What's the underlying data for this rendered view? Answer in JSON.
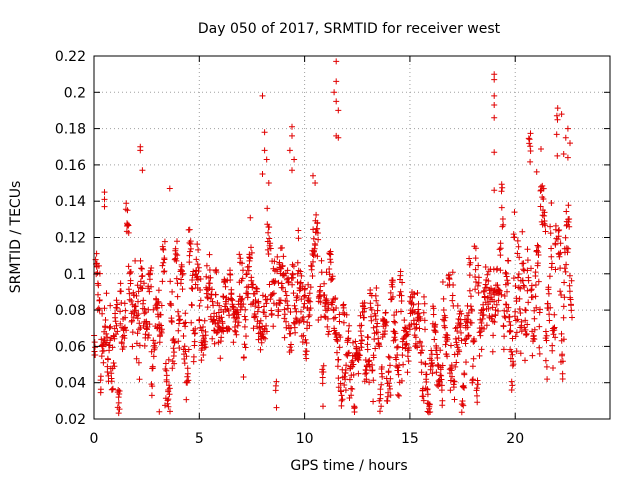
{
  "chart_data": {
    "type": "scatter",
    "title": "Day 050 of 2017, SRMTID for receiver west",
    "xlabel": "GPS time / hours",
    "ylabel": "SRMTID / TECUs",
    "xlim": [
      0,
      24.5
    ],
    "ylim": [
      0.02,
      0.22
    ],
    "xticks": [
      0,
      5,
      10,
      15,
      20
    ],
    "xtick_labels": [
      "0",
      "5",
      "10",
      "15",
      "20"
    ],
    "yticks": [
      0.02,
      0.04,
      0.06,
      0.08,
      0.1,
      0.12,
      0.14,
      0.16,
      0.18,
      0.2,
      0.22
    ],
    "ytick_labels": [
      "0.02",
      "0.04",
      "0.06",
      "0.08",
      "0.1",
      "0.12",
      "0.14",
      "0.16",
      "0.18",
      "0.2",
      "0.22"
    ],
    "grid": true,
    "marker": "+",
    "series": [
      {
        "name": "SRMTID",
        "color": "#e00000",
        "x_range": [
          0,
          22.7
        ],
        "point_count": 1800,
        "trend": [
          {
            "hour": 0,
            "mean": 0.072,
            "spread": 0.018
          },
          {
            "hour": 2,
            "mean": 0.07,
            "spread": 0.025
          },
          {
            "hour": 4,
            "mean": 0.078,
            "spread": 0.022
          },
          {
            "hour": 6,
            "mean": 0.075,
            "spread": 0.02
          },
          {
            "hour": 8,
            "mean": 0.085,
            "spread": 0.025
          },
          {
            "hour": 10,
            "mean": 0.088,
            "spread": 0.025
          },
          {
            "hour": 12,
            "mean": 0.058,
            "spread": 0.015
          },
          {
            "hour": 14,
            "mean": 0.06,
            "spread": 0.018
          },
          {
            "hour": 16,
            "mean": 0.055,
            "spread": 0.016
          },
          {
            "hour": 18,
            "mean": 0.07,
            "spread": 0.022
          },
          {
            "hour": 20,
            "mean": 0.085,
            "spread": 0.028
          },
          {
            "hour": 22,
            "mean": 0.11,
            "spread": 0.03
          }
        ],
        "outliers": [
          {
            "x": 0.5,
            "y": 0.145
          },
          {
            "x": 0.5,
            "y": 0.141
          },
          {
            "x": 0.5,
            "y": 0.137
          },
          {
            "x": 2.2,
            "y": 0.17
          },
          {
            "x": 2.2,
            "y": 0.168
          },
          {
            "x": 2.3,
            "y": 0.157
          },
          {
            "x": 3.6,
            "y": 0.147
          },
          {
            "x": 3.1,
            "y": 0.024
          },
          {
            "x": 8.0,
            "y": 0.198
          },
          {
            "x": 8.1,
            "y": 0.178
          },
          {
            "x": 8.1,
            "y": 0.168
          },
          {
            "x": 8.2,
            "y": 0.163
          },
          {
            "x": 8.0,
            "y": 0.155
          },
          {
            "x": 8.3,
            "y": 0.15
          },
          {
            "x": 9.4,
            "y": 0.181
          },
          {
            "x": 9.4,
            "y": 0.176
          },
          {
            "x": 9.3,
            "y": 0.168
          },
          {
            "x": 9.5,
            "y": 0.163
          },
          {
            "x": 9.4,
            "y": 0.157
          },
          {
            "x": 10.4,
            "y": 0.154
          },
          {
            "x": 10.5,
            "y": 0.15
          },
          {
            "x": 11.5,
            "y": 0.217
          },
          {
            "x": 11.5,
            "y": 0.206
          },
          {
            "x": 11.4,
            "y": 0.2
          },
          {
            "x": 11.5,
            "y": 0.195
          },
          {
            "x": 11.6,
            "y": 0.19
          },
          {
            "x": 11.5,
            "y": 0.176
          },
          {
            "x": 11.6,
            "y": 0.175
          },
          {
            "x": 19.0,
            "y": 0.21
          },
          {
            "x": 19.0,
            "y": 0.207
          },
          {
            "x": 19.0,
            "y": 0.198
          },
          {
            "x": 19.0,
            "y": 0.193
          },
          {
            "x": 19.0,
            "y": 0.186
          },
          {
            "x": 19.0,
            "y": 0.167
          },
          {
            "x": 19.0,
            "y": 0.146
          },
          {
            "x": 22.2,
            "y": 0.188
          },
          {
            "x": 22.5,
            "y": 0.18
          },
          {
            "x": 22.4,
            "y": 0.175
          },
          {
            "x": 22.6,
            "y": 0.172
          },
          {
            "x": 22.3,
            "y": 0.166
          },
          {
            "x": 22.5,
            "y": 0.164
          }
        ]
      }
    ]
  }
}
